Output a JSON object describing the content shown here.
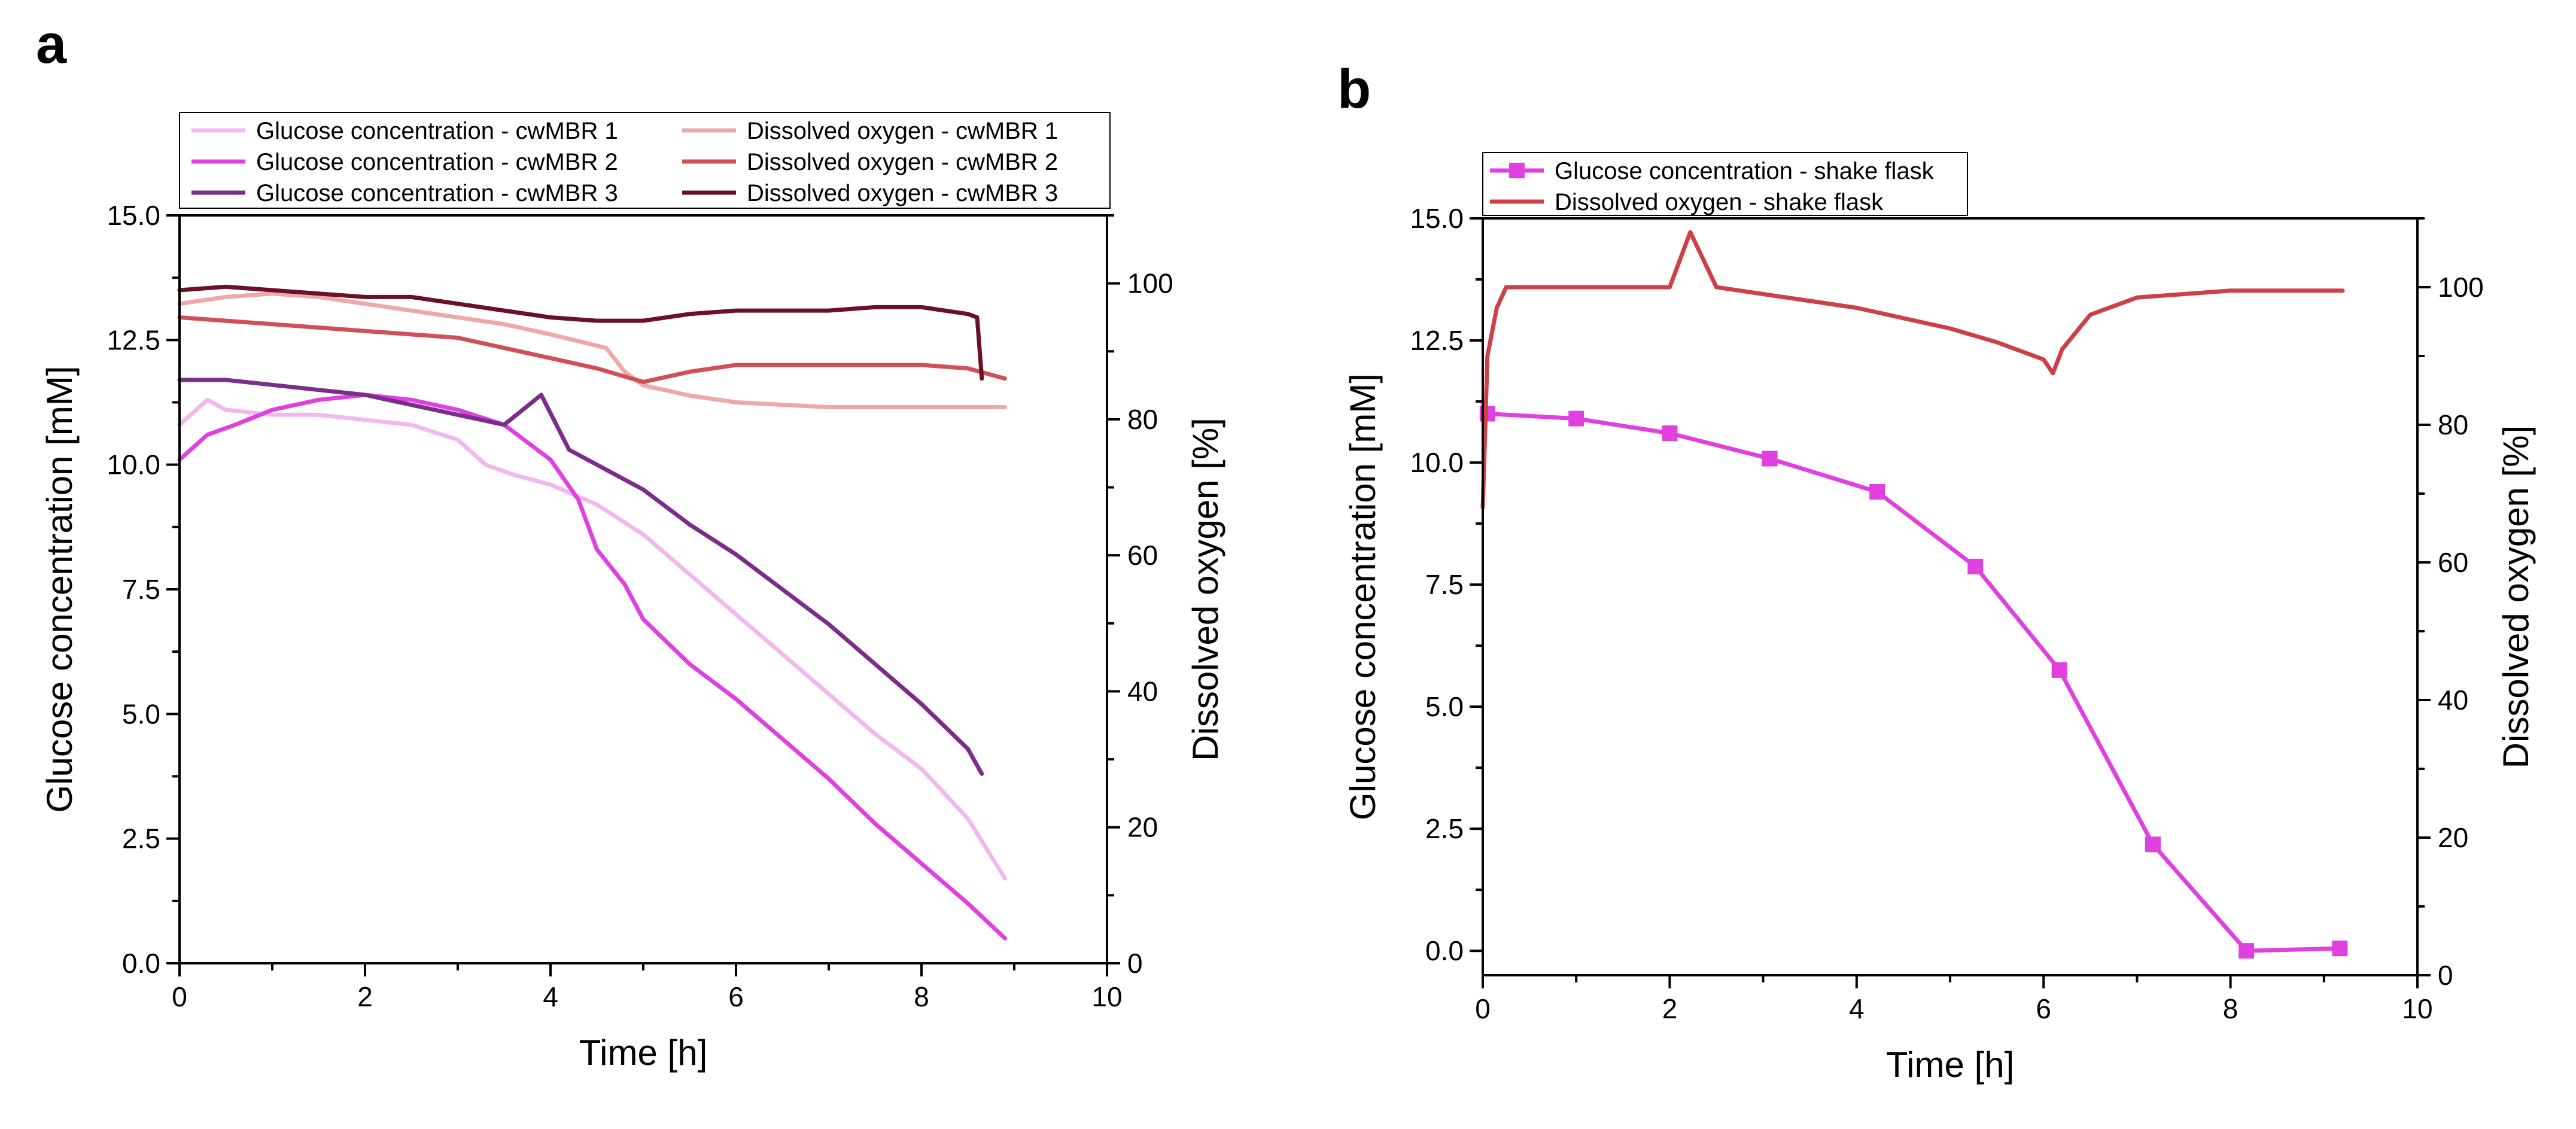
{
  "chart_data": [
    {
      "panel": "a",
      "type": "line",
      "xlabel": "Time [h]",
      "ylabel": "Glucose concentration [mM]",
      "y2label": "Dissolved oxygen [%]",
      "xlim": [
        0,
        10
      ],
      "ylim": [
        0,
        15
      ],
      "y2lim": [
        0,
        110
      ],
      "xticks": [
        "0",
        "2",
        "4",
        "6",
        "8",
        "10"
      ],
      "yticks": [
        "0.0",
        "2.5",
        "5.0",
        "7.5",
        "10.0",
        "12.5",
        "15.0"
      ],
      "y2ticks": [
        "0",
        "20",
        "40",
        "60",
        "80",
        "100"
      ],
      "grid": false,
      "legend_position": "top",
      "series": [
        {
          "name": "Glucose concentration - cwMBR 1",
          "axis": "left",
          "color": "#f2b8ee",
          "x": [
            0.0,
            0.3,
            0.5,
            1.0,
            1.5,
            2.0,
            2.5,
            3.0,
            3.3,
            3.6,
            4.0,
            4.5,
            5.0,
            5.5,
            6.0,
            6.5,
            7.0,
            7.5,
            8.0,
            8.5,
            8.9
          ],
          "y": [
            10.8,
            11.3,
            11.1,
            11.0,
            11.0,
            10.9,
            10.8,
            10.5,
            10.0,
            9.8,
            9.6,
            9.2,
            8.6,
            7.8,
            7.0,
            6.2,
            5.4,
            4.6,
            3.9,
            2.9,
            1.7
          ]
        },
        {
          "name": "Glucose concentration - cwMBR 2",
          "axis": "left",
          "color": "#e040e0",
          "x": [
            0.0,
            0.3,
            0.6,
            1.0,
            1.5,
            2.0,
            2.5,
            3.0,
            3.5,
            4.0,
            4.3,
            4.5,
            4.8,
            5.0,
            5.5,
            6.0,
            6.5,
            7.0,
            7.5,
            8.0,
            8.5,
            8.9
          ],
          "y": [
            10.1,
            10.6,
            10.8,
            11.1,
            11.3,
            11.4,
            11.3,
            11.1,
            10.8,
            10.1,
            9.3,
            8.3,
            7.6,
            6.9,
            6.0,
            5.3,
            4.5,
            3.7,
            2.8,
            2.0,
            1.2,
            0.5
          ]
        },
        {
          "name": "Glucose concentration - cwMBR 3",
          "axis": "left",
          "color": "#7b2d8a",
          "x": [
            0.0,
            0.5,
            1.0,
            1.5,
            2.0,
            2.5,
            3.0,
            3.5,
            3.9,
            4.2,
            4.5,
            5.0,
            5.5,
            6.0,
            6.5,
            7.0,
            7.5,
            8.0,
            8.5,
            8.65
          ],
          "y": [
            11.7,
            11.7,
            11.6,
            11.5,
            11.4,
            11.2,
            11.0,
            10.8,
            11.4,
            10.3,
            10.0,
            9.5,
            8.8,
            8.2,
            7.5,
            6.8,
            6.0,
            5.2,
            4.3,
            3.8
          ]
        },
        {
          "name": "Dissolved oxygen - cwMBR 1",
          "axis": "right",
          "color": "#eea8a8",
          "x": [
            0.0,
            0.5,
            1.0,
            1.5,
            2.0,
            2.5,
            3.0,
            3.5,
            4.0,
            4.3,
            4.6,
            4.8,
            5.0,
            5.5,
            6.0,
            7.0,
            8.0,
            8.9
          ],
          "y": [
            97.0,
            98.0,
            98.5,
            98.0,
            97.0,
            96.0,
            95.0,
            94.0,
            92.5,
            91.5,
            90.5,
            87.0,
            85.0,
            83.5,
            82.5,
            81.8,
            81.8,
            81.8
          ]
        },
        {
          "name": "Dissolved oxygen - cwMBR 2",
          "axis": "right",
          "color": "#d0505a",
          "x": [
            0.0,
            0.5,
            1.0,
            1.5,
            2.0,
            2.5,
            3.0,
            3.5,
            4.0,
            4.5,
            5.0,
            5.5,
            6.0,
            6.5,
            7.0,
            7.5,
            8.0,
            8.5,
            8.9
          ],
          "y": [
            95.0,
            94.5,
            94.0,
            93.5,
            93.0,
            92.5,
            92.0,
            90.5,
            89.0,
            87.5,
            85.5,
            87.0,
            88.0,
            88.0,
            88.0,
            88.0,
            88.0,
            87.5,
            86.0
          ]
        },
        {
          "name": "Dissolved oxygen - cwMBR 3",
          "axis": "right",
          "color": "#6b1028",
          "x": [
            0.0,
            0.5,
            1.0,
            1.5,
            2.0,
            2.5,
            3.0,
            3.5,
            4.0,
            4.5,
            5.0,
            5.5,
            6.0,
            6.5,
            7.0,
            7.5,
            8.0,
            8.5,
            8.6,
            8.65
          ],
          "y": [
            99.0,
            99.5,
            99.0,
            98.5,
            98.0,
            98.0,
            97.0,
            96.0,
            95.0,
            94.5,
            94.5,
            95.5,
            96.0,
            96.0,
            96.0,
            96.5,
            96.5,
            95.5,
            95.0,
            86.0
          ]
        }
      ]
    },
    {
      "panel": "b",
      "type": "line",
      "xlabel": "Time [h]",
      "ylabel": "Glucose concentration [mM]",
      "y2label": "Dissolved oxygen [%]",
      "xlim": [
        0,
        10
      ],
      "ylim": [
        -0.5,
        15
      ],
      "y2lim": [
        0,
        110
      ],
      "xticks": [
        "0",
        "2",
        "4",
        "6",
        "8",
        "10"
      ],
      "yticks": [
        "0.0",
        "2.5",
        "5.0",
        "7.5",
        "10.0",
        "12.5",
        "15.0"
      ],
      "y2ticks": [
        "0",
        "20",
        "40",
        "60",
        "80",
        "100"
      ],
      "grid": false,
      "legend_position": "top",
      "series": [
        {
          "name": "Glucose concentration - shake flask",
          "axis": "left",
          "color": "#e040e0",
          "marker": "square",
          "x": [
            0.05,
            1.0,
            2.0,
            3.07,
            4.22,
            5.27,
            6.17,
            7.17,
            8.17,
            9.17
          ],
          "y": [
            11.0,
            10.9,
            10.6,
            10.08,
            9.4,
            7.87,
            5.75,
            2.18,
            0.0,
            0.05
          ]
        },
        {
          "name": "Dissolved oxygen - shake flask",
          "axis": "right",
          "color": "#cc4048",
          "x": [
            0.0,
            0.05,
            0.15,
            0.25,
            0.5,
            1.0,
            1.5,
            2.0,
            2.22,
            2.5,
            3.0,
            3.5,
            4.0,
            4.5,
            5.0,
            5.5,
            6.0,
            6.1,
            6.2,
            6.5,
            7.0,
            7.5,
            8.0,
            8.5,
            9.0,
            9.2
          ],
          "y": [
            68.0,
            90.0,
            97.0,
            100.0,
            100.0,
            100.0,
            100.0,
            100.0,
            108.0,
            100.0,
            99.0,
            98.0,
            97.0,
            95.5,
            94.0,
            92.0,
            89.5,
            87.5,
            91.0,
            96.0,
            98.5,
            99.0,
            99.5,
            99.5,
            99.5,
            99.5
          ]
        }
      ]
    }
  ]
}
